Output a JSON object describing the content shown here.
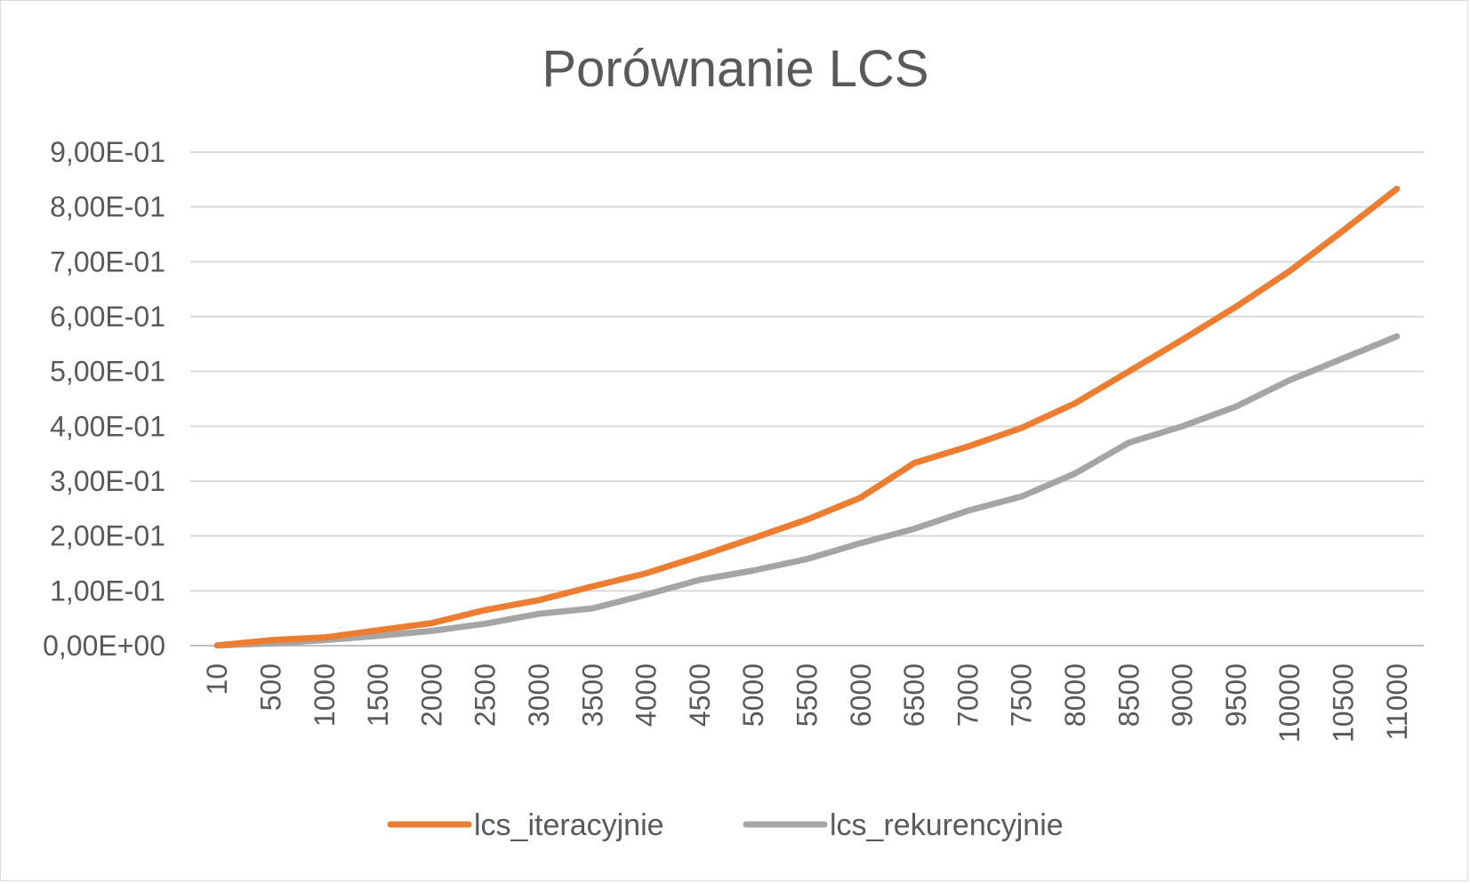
{
  "chart_data": {
    "type": "line",
    "title": "Porównanie LCS",
    "xlabel": "",
    "ylabel": "",
    "categories": [
      "10",
      "500",
      "1000",
      "1500",
      "2000",
      "2500",
      "3000",
      "3500",
      "4000",
      "4500",
      "5000",
      "5500",
      "6000",
      "6500",
      "7000",
      "7500",
      "8000",
      "8500",
      "9000",
      "9500",
      "10000",
      "10500",
      "11000"
    ],
    "ylim": [
      0,
      0.9
    ],
    "yticks": [
      0,
      0.1,
      0.2,
      0.3,
      0.4,
      0.5,
      0.6,
      0.7,
      0.8,
      0.9
    ],
    "ytick_labels": [
      "0,00E+00",
      "1,00E-01",
      "2,00E-01",
      "3,00E-01",
      "4,00E-01",
      "5,00E-01",
      "6,00E-01",
      "7,00E-01",
      "8,00E-01",
      "9,00E-01"
    ],
    "grid": true,
    "legend_position": "bottom",
    "series": [
      {
        "name": "lcs_iteracyjnie",
        "color": "#ED7D31",
        "values": [
          0.0005,
          0.01,
          0.015,
          0.028,
          0.041,
          0.065,
          0.083,
          0.108,
          0.132,
          0.163,
          0.196,
          0.23,
          0.27,
          0.333,
          0.363,
          0.397,
          0.442,
          0.5,
          0.558,
          0.618,
          0.683,
          0.757,
          0.833
        ]
      },
      {
        "name": "lcs_rekurencyjnie",
        "color": "#A5A5A5",
        "values": [
          0.0003,
          0.004,
          0.01,
          0.018,
          0.027,
          0.04,
          0.058,
          0.068,
          0.093,
          0.12,
          0.137,
          0.158,
          0.187,
          0.213,
          0.246,
          0.272,
          0.314,
          0.37,
          0.4,
          0.436,
          0.484,
          0.524,
          0.564
        ]
      }
    ]
  }
}
